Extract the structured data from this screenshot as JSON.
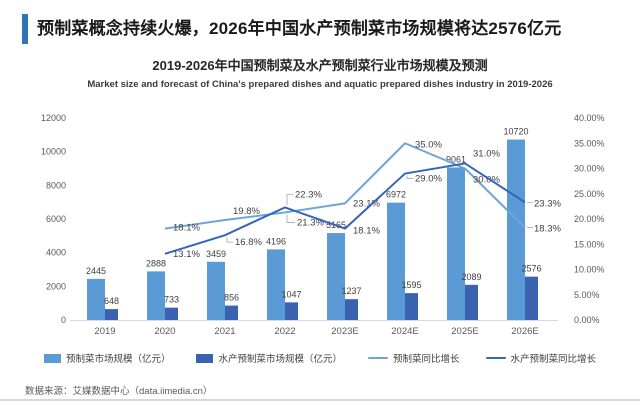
{
  "header": {
    "title": "预制菜概念持续火爆，2026年中国水产预制菜市场规模将达2576亿元",
    "accent_color": "#2E75B6"
  },
  "chart": {
    "title": "2019-2026年中国预制菜及水产预制菜行业市场规模及预测",
    "subtitle": "Market size and forecast of China's prepared dishes and aquatic prepared dishes industry in 2019-2026"
  },
  "chart_data": {
    "type": "bar",
    "subtype": "combo bar + line, dual axis",
    "categories": [
      "2019",
      "2020",
      "2021",
      "2022",
      "2023E",
      "2024E",
      "2025E",
      "2026E"
    ],
    "bar_series": [
      {
        "name": "预制菜市场规模（亿元）",
        "color": "#5B9BD5",
        "axis": "left",
        "values": [
          2445,
          2888,
          3459,
          4196,
          5165,
          6972,
          9061,
          10720
        ]
      },
      {
        "name": "水产预制菜市场规模（亿元）",
        "color": "#3A62B0",
        "axis": "left",
        "values": [
          648,
          733,
          856,
          1047,
          1237,
          1595,
          2089,
          2576
        ]
      }
    ],
    "line_series": [
      {
        "name": "预制菜同比增长",
        "color": "#6FA4D8",
        "axis": "right",
        "values": [
          null,
          18.1,
          19.8,
          21.3,
          23.1,
          35.0,
          30.0,
          18.3
        ]
      },
      {
        "name": "水产预制菜同比增长",
        "color": "#3465B8",
        "axis": "right",
        "values": [
          null,
          13.1,
          16.8,
          22.3,
          18.1,
          29.0,
          31.0,
          23.3
        ]
      }
    ],
    "left_axis": {
      "min": 0,
      "max": 12000,
      "step": 2000
    },
    "right_axis": {
      "min": 0,
      "max": 40,
      "step": 5,
      "suffix": "%",
      "decimals": 2
    },
    "grid": false,
    "legend_position": "bottom",
    "label_color": "#404040",
    "axis_label_color": "#595959"
  },
  "footer": {
    "source": "数据来源：艾媒数据中心（data.iimedia.cn）"
  }
}
